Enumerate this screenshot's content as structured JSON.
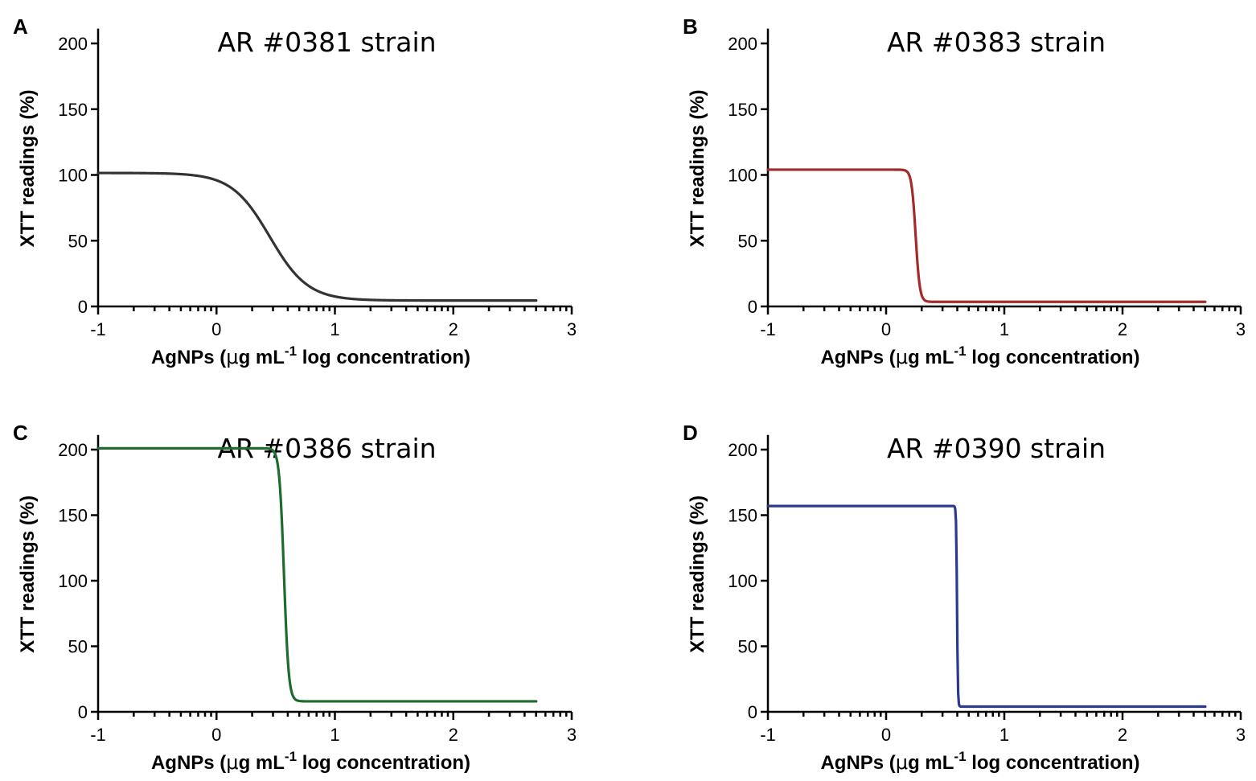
{
  "chart_data": [
    {
      "panel": "A",
      "type": "line",
      "title": "AR #0381 strain",
      "xlabel_parts": [
        "AgNPs (",
        "μ",
        "g mL",
        "-1",
        " log concentration)"
      ],
      "ylabel": "XTT readings (%)",
      "xlim": [
        -1,
        3
      ],
      "ylim": [
        0,
        210
      ],
      "x_ticks": [
        -1,
        0,
        1,
        2,
        3
      ],
      "y_ticks": [
        0,
        50,
        100,
        150,
        200
      ],
      "color": "#333333",
      "fit": {
        "top": 101.5,
        "bottom": 4.5,
        "log_ic50": 0.45,
        "hill": -2.7,
        "x_start": -1,
        "x_end": 2.7
      }
    },
    {
      "panel": "B",
      "type": "line",
      "title": "AR #0383 strain",
      "xlabel_parts": [
        "AgNPs (",
        "μ",
        "g mL",
        "-1",
        " log concentration)"
      ],
      "ylabel": "XTT readings (%)",
      "xlim": [
        -1,
        3
      ],
      "ylim": [
        0,
        210
      ],
      "x_ticks": [
        -1,
        0,
        1,
        2,
        3
      ],
      "y_ticks": [
        0,
        50,
        100,
        150,
        200
      ],
      "color": "#a52a2a",
      "fit": {
        "top": 104,
        "bottom": 3.5,
        "log_ic50": 0.25,
        "hill": -25,
        "x_start": -1,
        "x_end": 2.7
      }
    },
    {
      "panel": "C",
      "type": "line",
      "title": "AR #0386 strain",
      "xlabel_parts": [
        "AgNPs (",
        "μ",
        "g mL",
        "-1",
        " log concentration)"
      ],
      "ylabel": "XTT readings (%)",
      "xlim": [
        -1,
        3
      ],
      "ylim": [
        0,
        210
      ],
      "x_ticks": [
        -1,
        0,
        1,
        2,
        3
      ],
      "y_ticks": [
        0,
        50,
        100,
        150,
        200
      ],
      "color": "#1e6b2e",
      "fit": {
        "top": 201,
        "bottom": 8,
        "log_ic50": 0.57,
        "hill": -22,
        "x_start": -1,
        "x_end": 2.7
      }
    },
    {
      "panel": "D",
      "type": "line",
      "title": "AR #0390 strain",
      "xlabel_parts": [
        "AgNPs (",
        "μ",
        "g mL",
        "-1",
        " log concentration)"
      ],
      "ylabel": "XTT readings (%)",
      "xlim": [
        -1,
        3
      ],
      "ylim": [
        0,
        210
      ],
      "x_ticks": [
        -1,
        0,
        1,
        2,
        3
      ],
      "y_ticks": [
        0,
        50,
        100,
        150,
        200
      ],
      "color": "#2b3a8c",
      "fit": {
        "top": 157,
        "bottom": 4,
        "log_ic50": 0.6,
        "hill": -120,
        "x_start": -1,
        "x_end": 2.7
      }
    }
  ]
}
